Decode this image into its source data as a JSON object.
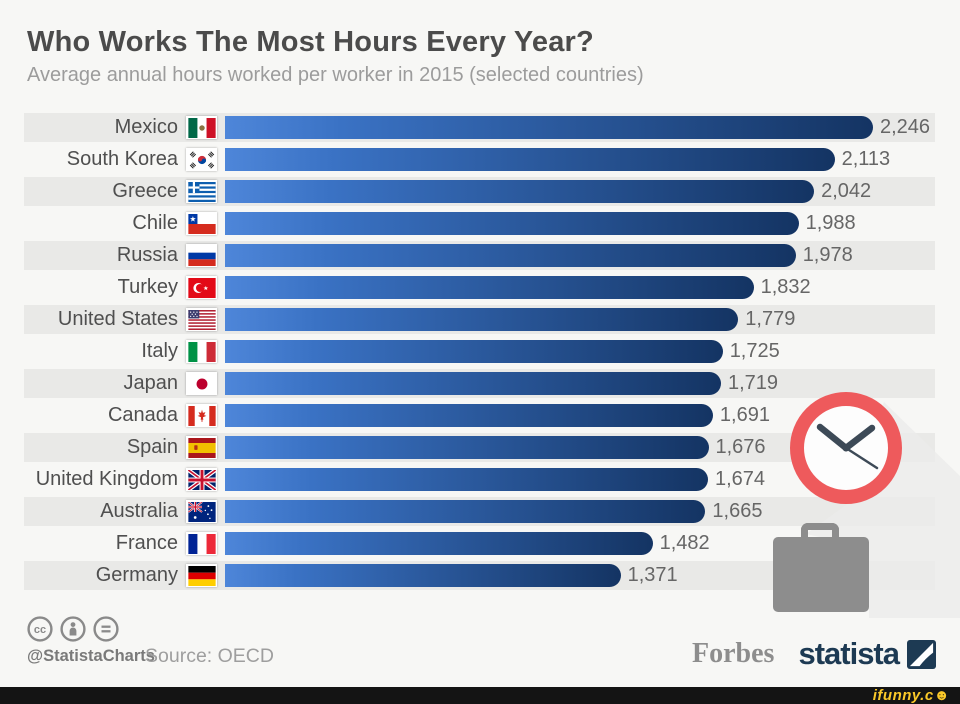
{
  "header": {
    "title": "Who Works The Most Hours Every Year?",
    "subtitle": "Average annual hours worked per worker in 2015 (selected countries)"
  },
  "chart_data": {
    "type": "bar",
    "orientation": "horizontal",
    "title": "Who Works The Most Hours Every Year?",
    "subtitle": "Average annual hours worked per worker in 2015 (selected countries)",
    "unit": "hours per year",
    "xlim": [
      0,
      2246
    ],
    "grid": false,
    "legend": false,
    "categories": [
      "Mexico",
      "South Korea",
      "Greece",
      "Chile",
      "Russia",
      "Turkey",
      "United States",
      "Italy",
      "Japan",
      "Canada",
      "Spain",
      "United Kingdom",
      "Australia",
      "France",
      "Germany"
    ],
    "values": [
      2246,
      2113,
      2042,
      1988,
      1978,
      1832,
      1779,
      1725,
      1719,
      1691,
      1676,
      1674,
      1665,
      1482,
      1371
    ],
    "value_labels": [
      "2,246",
      "2,113",
      "2,042",
      "1,988",
      "1,978",
      "1,832",
      "1,779",
      "1,725",
      "1,719",
      "1,691",
      "1,676",
      "1,674",
      "1,665",
      "1,482",
      "1,371"
    ],
    "flags": [
      "mexico-flag",
      "south-korea-flag",
      "greece-flag",
      "chile-flag",
      "russia-flag",
      "turkey-flag",
      "united-states-flag",
      "italy-flag",
      "japan-flag",
      "canada-flag",
      "spain-flag",
      "united-kingdom-flag",
      "australia-flag",
      "france-flag",
      "germany-flag"
    ]
  },
  "footer": {
    "license_icons": [
      "cc-icon",
      "attribution-icon",
      "equals-icon"
    ],
    "handle": "@StatistaCharts",
    "source": "Source: OECD",
    "forbes": "Forbes",
    "statista": "statista"
  },
  "decorations": {
    "clock_icon": "clock-icon",
    "briefcase_icon": "briefcase-icon"
  },
  "watermark": {
    "text": "ifunny.c",
    "smiley": "☻"
  },
  "colors": {
    "bar_gradient_start": "#4e86d9",
    "bar_gradient_end": "#143463",
    "row_stripe": "#e9e9e7",
    "clock_red": "#ee5a5c",
    "icon_gray": "#8d8d8d",
    "statista_navy": "#1d3a53",
    "watermark_yellow": "#fbc929"
  }
}
